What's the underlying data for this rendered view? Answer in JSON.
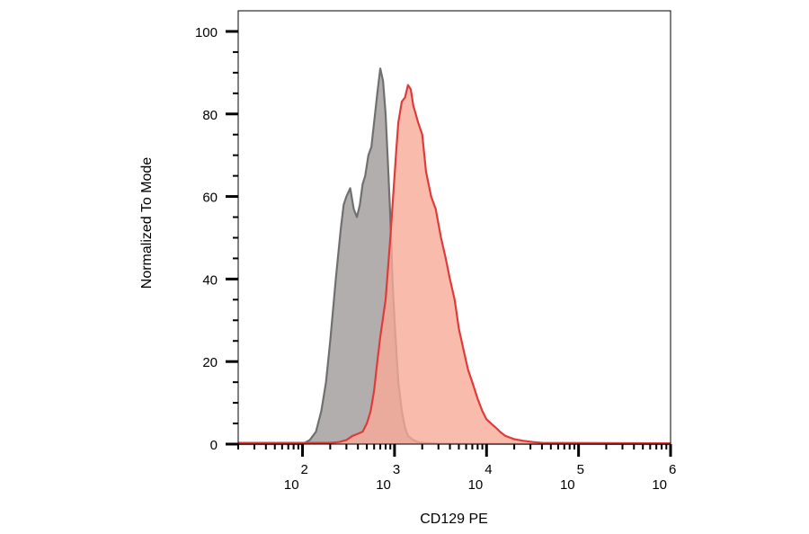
{
  "chart_data": {
    "type": "area",
    "xlabel": "CD129 PE",
    "ylabel": "Normalized To Mode",
    "xscale": "log",
    "xlim": [
      20,
      1000000
    ],
    "ylim": [
      0,
      105
    ],
    "grid": false,
    "legend": "none",
    "y_ticks": [
      {
        "value": 0,
        "label": "0"
      },
      {
        "value": 20,
        "label": "20"
      },
      {
        "value": 40,
        "label": "40"
      },
      {
        "value": 60,
        "label": "60"
      },
      {
        "value": 80,
        "label": "80"
      },
      {
        "value": 100,
        "label": "100"
      }
    ],
    "x_ticks": [
      {
        "value": 100,
        "base": "10",
        "exp": "2"
      },
      {
        "value": 1000,
        "base": "10",
        "exp": "3"
      },
      {
        "value": 10000,
        "base": "10",
        "exp": "4"
      },
      {
        "value": 100000,
        "base": "10",
        "exp": "5"
      },
      {
        "value": 1000000,
        "base": "10",
        "exp": "6"
      }
    ],
    "series": [
      {
        "fill": "#b2aeae",
        "stroke": "#707070",
        "x": [
          20,
          100,
          120,
          140,
          160,
          180,
          200,
          230,
          260,
          280,
          300,
          330,
          360,
          390,
          420,
          450,
          480,
          520,
          560,
          600,
          650,
          700,
          750,
          800,
          860,
          900,
          950,
          1000,
          1050,
          1100,
          1200,
          1300,
          1400,
          1600,
          1800,
          2000,
          2500,
          3000,
          1000000
        ],
        "y": [
          0,
          0,
          1,
          3,
          8,
          15,
          25,
          40,
          52,
          58,
          60,
          62,
          57,
          55,
          58,
          63,
          65,
          70,
          72,
          78,
          85,
          91,
          88,
          80,
          65,
          55,
          40,
          30,
          22,
          15,
          8,
          4,
          2,
          1,
          0.5,
          0.3,
          0.2,
          0.1,
          0
        ]
      },
      {
        "fill": "#f8aa97",
        "stroke": "#e03b3b",
        "x": [
          20,
          200,
          250,
          300,
          350,
          400,
          450,
          500,
          550,
          600,
          650,
          700,
          800,
          900,
          1000,
          1050,
          1100,
          1200,
          1300,
          1400,
          1500,
          1600,
          1700,
          1800,
          2000,
          2200,
          2500,
          2800,
          3200,
          3600,
          4000,
          4500,
          5000,
          5600,
          6300,
          7000,
          8000,
          9000,
          10000,
          11200,
          12600,
          14000,
          16000,
          20000,
          25000,
          32000,
          40000,
          1000000
        ],
        "y": [
          0.3,
          0.3,
          0.5,
          1,
          2,
          2.5,
          3,
          5,
          8,
          13,
          20,
          26,
          35,
          50,
          65,
          72,
          78,
          83,
          84,
          87,
          86,
          82,
          80,
          78,
          75,
          66,
          60,
          57,
          50,
          45,
          40,
          35,
          28,
          23,
          18,
          15,
          11,
          8,
          6,
          5,
          4,
          3,
          2,
          1.2,
          0.8,
          0.5,
          0.3,
          0.2
        ]
      }
    ]
  }
}
